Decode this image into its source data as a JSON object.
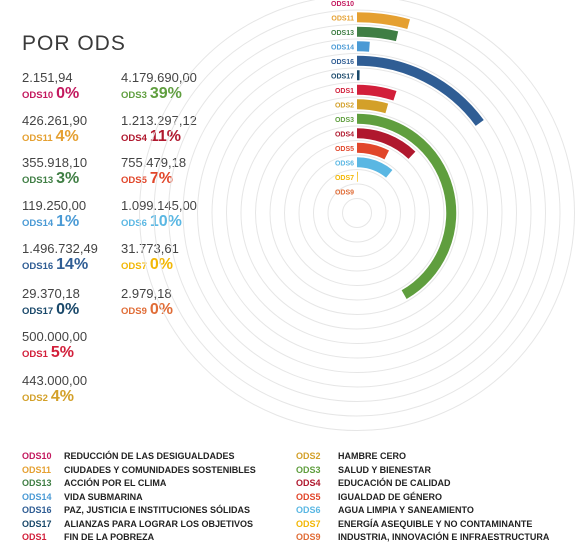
{
  "title": "POR ODS",
  "colors": {
    "ODS10": "#c3185e",
    "ODS11": "#e5a031",
    "ODS13": "#3f7e44",
    "ODS14": "#4a9ad5",
    "ODS16": "#2f5d94",
    "ODS17": "#19486a",
    "ODS1": "#d21f3a",
    "ODS2": "#d3a029",
    "ODS3": "#5f9e3e",
    "ODS4": "#b0182e",
    "ODS5": "#e1462a",
    "ODS6": "#5ab7e3",
    "ODS7": "#f2b705",
    "ODS9": "#e06c36"
  },
  "stats": [
    {
      "code": "ODS10",
      "amount": "2.151,94",
      "pct": "0%"
    },
    {
      "code": "ODS11",
      "amount": "426.261,90",
      "pct": "4%"
    },
    {
      "code": "ODS13",
      "amount": "355.918,10",
      "pct": "3%"
    },
    {
      "code": "ODS14",
      "amount": "119.250,00",
      "pct": "1%"
    },
    {
      "code": "ODS16",
      "amount": "1.496.732,49",
      "pct": "14%"
    },
    {
      "code": "ODS17",
      "amount": "29.370,18",
      "pct": "0%"
    },
    {
      "code": "ODS1",
      "amount": "500.000,00",
      "pct": "5%"
    },
    {
      "code": "ODS2",
      "amount": "443.000,00",
      "pct": "4%"
    },
    {
      "code": "ODS3",
      "amount": "4.179.690,00",
      "pct": "39%"
    },
    {
      "code": "ODS4",
      "amount": "1.213.297,12",
      "pct": "11%"
    },
    {
      "code": "ODS5",
      "amount": "755.479,18",
      "pct": "7%"
    },
    {
      "code": "ODS6",
      "amount": "1.099.145,00",
      "pct": "10%"
    },
    {
      "code": "ODS7",
      "amount": "31.773,61",
      "pct": "0%"
    },
    {
      "code": "ODS9",
      "amount": "2.979,18",
      "pct": "0%"
    }
  ],
  "chart_data": {
    "type": "radial-bar",
    "categories": [
      "ODS10",
      "ODS11",
      "ODS13",
      "ODS14",
      "ODS16",
      "ODS17",
      "ODS1",
      "ODS2",
      "ODS3",
      "ODS4",
      "ODS5",
      "ODS6",
      "ODS7",
      "ODS9"
    ],
    "values": [
      2151.94,
      426261.9,
      355918.1,
      119250.0,
      1496732.49,
      29370.18,
      500000.0,
      443000.0,
      4179690.0,
      1213297.12,
      755479.18,
      1099145.0,
      31773.61,
      2979.18
    ],
    "percent": [
      0,
      4,
      3,
      1,
      14,
      0,
      5,
      4,
      39,
      11,
      7,
      10,
      0,
      0
    ]
  },
  "legend": [
    {
      "code": "ODS10",
      "name": "REDUCCIÓN DE LAS DESIGUALDADES"
    },
    {
      "code": "ODS11",
      "name": "CIUDADES Y COMUNIDADES SOSTENIBLES"
    },
    {
      "code": "ODS13",
      "name": "ACCIÓN POR EL CLIMA"
    },
    {
      "code": "ODS14",
      "name": "VIDA SUBMARINA"
    },
    {
      "code": "ODS16",
      "name": "PAZ, JUSTICIA E INSTITUCIONES SÓLIDAS"
    },
    {
      "code": "ODS17",
      "name": "ALIANZAS PARA LOGRAR LOS OBJETIVOS"
    },
    {
      "code": "ODS1",
      "name": "FIN DE LA POBREZA"
    },
    {
      "code": "ODS2",
      "name": "HAMBRE CERO"
    },
    {
      "code": "ODS3",
      "name": "SALUD Y BIENESTAR"
    },
    {
      "code": "ODS4",
      "name": "EDUCACIÓN DE CALIDAD"
    },
    {
      "code": "ODS5",
      "name": "IGUALDAD DE GÉNERO"
    },
    {
      "code": "ODS6",
      "name": "AGUA LIMPIA Y SANEAMIENTO"
    },
    {
      "code": "ODS7",
      "name": "ENERGÍA ASEQUIBLE Y NO CONTAMINANTE"
    },
    {
      "code": "ODS9",
      "name": "INDUSTRIA, INNOVACIÓN E INFRAESTRUCTURA"
    }
  ]
}
